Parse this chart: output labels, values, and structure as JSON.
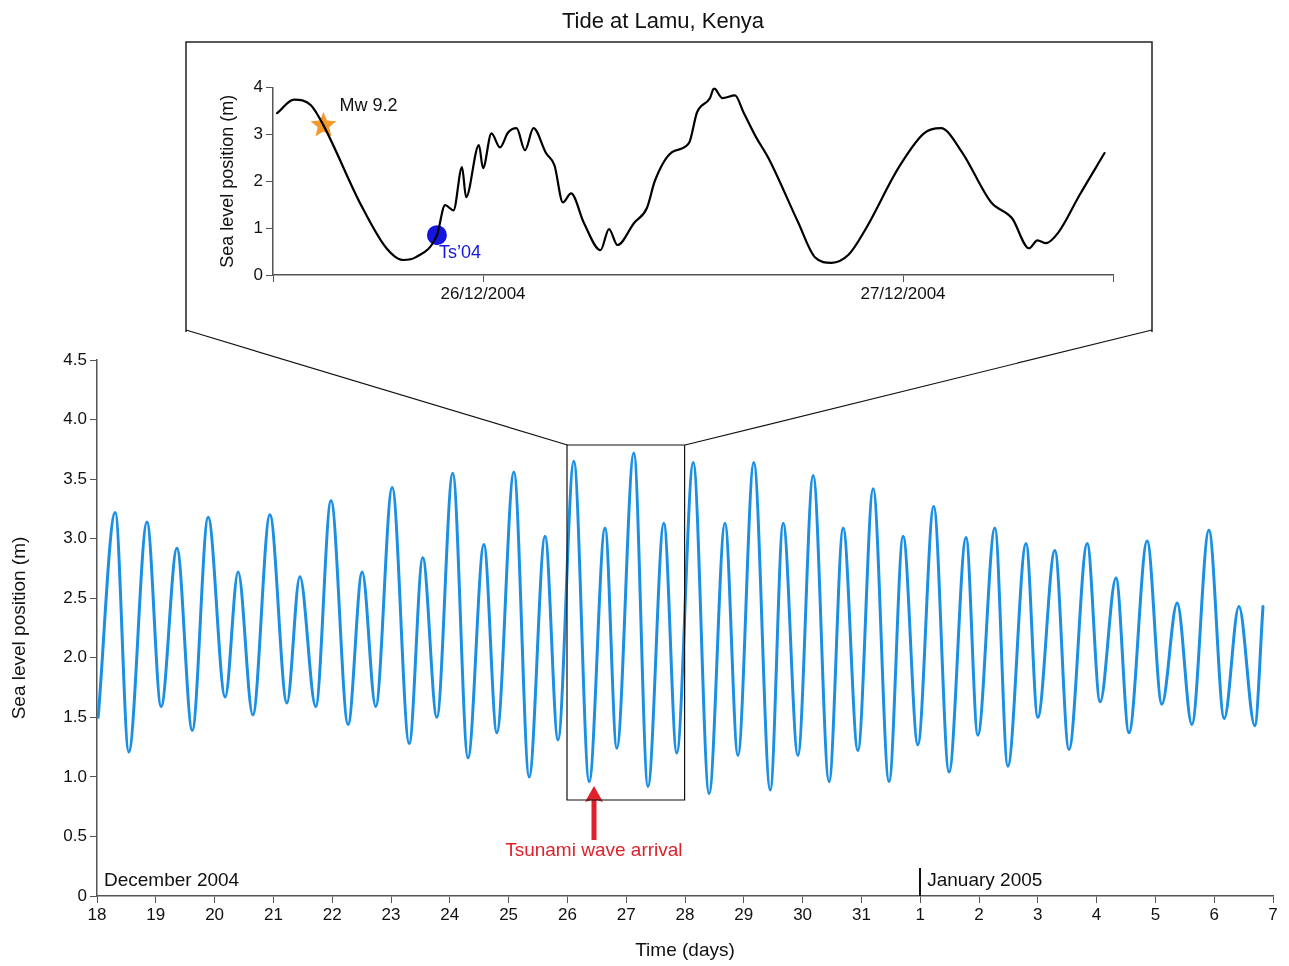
{
  "chart_data": [
    {
      "type": "line",
      "title": "Tide at Lamu, Kenya",
      "ylabel": "Sea level position (m)",
      "xlim": [
        "2004-12-26",
        "2004-12-28"
      ],
      "xticks": [
        {
          "value": "2004-12-26",
          "label": null
        },
        {
          "value": "2004-12-26T12:00",
          "label": "26/12/2004"
        },
        {
          "value": "2004-12-27T12:00",
          "label": "27/12/2004"
        },
        {
          "value": "2004-12-28",
          "label": null
        }
      ],
      "ylim": [
        0,
        4
      ],
      "yticks": [
        0,
        1,
        2,
        3,
        4
      ],
      "series": [
        {
          "color": "#000000",
          "x": [
            "2004-12-26T00:14",
            "2004-12-26T01:12",
            "2004-12-26T02:10",
            "2004-12-26T02:53",
            "2004-12-26T05:02",
            "2004-12-26T06:29",
            "2004-12-26T07:26",
            "2004-12-26T08:10",
            "2004-12-26T09:22",
            "2004-12-26T09:50",
            "2004-12-26T10:19",
            "2004-12-26T10:48",
            "2004-12-26T11:02",
            "2004-12-26T11:46",
            "2004-12-26T12:00",
            "2004-12-26T12:29",
            "2004-12-26T12:58",
            "2004-12-26T13:26",
            "2004-12-26T13:55",
            "2004-12-26T14:24",
            "2004-12-26T14:53",
            "2004-12-26T15:36",
            "2004-12-26T16:05",
            "2004-12-26T16:34",
            "2004-12-26T17:02",
            "2004-12-26T17:46",
            "2004-12-26T18:43",
            "2004-12-26T19:12",
            "2004-12-26T19:41",
            "2004-12-26T20:38",
            "2004-12-26T21:22",
            "2004-12-26T21:50",
            "2004-12-26T22:48",
            "2004-12-26T23:46",
            "2004-12-27T00:14",
            "2004-12-27T00:58",
            "2004-12-27T01:12",
            "2004-12-27T01:41",
            "2004-12-27T02:24",
            "2004-12-27T02:53",
            "2004-12-27T03:36",
            "2004-12-27T04:19",
            "2004-12-27T06:00",
            "2004-12-27T06:58",
            "2004-12-27T07:55",
            "2004-12-27T08:53",
            "2004-12-27T09:50",
            "2004-12-27T11:46",
            "2004-12-27T13:12",
            "2004-12-27T14:10",
            "2004-12-27T15:22",
            "2004-12-27T17:02",
            "2004-12-27T18:14",
            "2004-12-27T19:12",
            "2004-12-27T19:41",
            "2004-12-27T20:10",
            "2004-12-27T20:53",
            "2004-12-27T22:05",
            "2004-12-27T23:31"
          ],
          "values": [
            3.45,
            3.74,
            3.62,
            3.19,
            1.49,
            0.57,
            0.32,
            0.38,
            0.85,
            1.49,
            1.38,
            2.3,
            1.66,
            2.77,
            2.28,
            3.02,
            2.72,
            3.04,
            3.13,
            2.66,
            3.13,
            2.6,
            2.34,
            1.55,
            1.74,
            1.11,
            0.53,
            0.98,
            0.64,
            1.11,
            1.43,
            2.02,
            2.62,
            2.81,
            3.47,
            3.77,
            3.98,
            3.77,
            3.83,
            3.47,
            2.94,
            2.49,
            1.13,
            0.38,
            0.26,
            0.43,
            0.96,
            2.3,
            3.02,
            3.13,
            2.62,
            1.55,
            1.21,
            0.57,
            0.74,
            0.68,
            0.91,
            1.7,
            2.6
          ]
        },
        {
          "name": "Mw 9.2",
          "type": "scatter",
          "marker": "star",
          "color": "#f39a2f",
          "x": [
            "2004-12-26T02:53"
          ],
          "values": [
            3.19
          ]
        },
        {
          "name": "Ts’04",
          "type": "scatter",
          "marker": "circle",
          "color": "#1515e0",
          "x": [
            "2004-12-26T09:22"
          ],
          "values": [
            0.85
          ]
        }
      ]
    },
    {
      "type": "line",
      "xlabel": "Time (days)",
      "ylabel": "Sea level position (m)",
      "xlim": [
        "2004-12-18",
        "2005-01-07"
      ],
      "xticks": [
        {
          "value": "2004-12-18",
          "label": "18"
        },
        {
          "value": "2004-12-19",
          "label": "19"
        },
        {
          "value": "2004-12-20",
          "label": "20"
        },
        {
          "value": "2004-12-21",
          "label": "21"
        },
        {
          "value": "2004-12-22",
          "label": "22"
        },
        {
          "value": "2004-12-23",
          "label": "23"
        },
        {
          "value": "2004-12-24",
          "label": "24"
        },
        {
          "value": "2004-12-25",
          "label": "25"
        },
        {
          "value": "2004-12-26",
          "label": "26"
        },
        {
          "value": "2004-12-27",
          "label": "27"
        },
        {
          "value": "2004-12-28",
          "label": "28"
        },
        {
          "value": "2004-12-29",
          "label": "29"
        },
        {
          "value": "2004-12-30",
          "label": "30"
        },
        {
          "value": "2004-12-31",
          "label": "31"
        },
        {
          "value": "2005-01-01",
          "label": "1"
        },
        {
          "value": "2005-01-02",
          "label": "2"
        },
        {
          "value": "2005-01-03",
          "label": "3"
        },
        {
          "value": "2005-01-04",
          "label": "4"
        },
        {
          "value": "2005-01-05",
          "label": "5"
        },
        {
          "value": "2005-01-06",
          "label": "6"
        },
        {
          "value": "2005-01-07",
          "label": "7"
        }
      ],
      "ylim": [
        0,
        4.5
      ],
      "yticks": [
        0,
        0.5,
        {
          "value": 1,
          "label": "1.0"
        },
        1.5,
        {
          "value": 2,
          "label": "2.0"
        },
        2.5,
        {
          "value": 3,
          "label": "3.0"
        },
        3.5,
        {
          "value": 4,
          "label": "4.0"
        },
        4.5
      ],
      "series": [
        {
          "color": "#1a8fe3",
          "x": [
            "2004-12-18T00:29",
            "2004-12-18T07:26",
            "2004-12-18T12:58",
            "2004-12-18T20:24",
            "2004-12-19T02:10",
            "2004-12-19T08:38",
            "2004-12-19T14:53",
            "2004-12-19T21:22",
            "2004-12-20T04:19",
            "2004-12-20T09:36",
            "2004-12-20T15:36",
            "2004-12-20T22:34",
            "2004-12-21T05:31",
            "2004-12-21T10:48",
            "2004-12-21T17:17",
            "2004-12-21T23:31",
            "2004-12-22T06:29",
            "2004-12-22T12:14",
            "2004-12-22T17:46",
            "2004-12-23T00:29",
            "2004-12-23T07:26",
            "2004-12-23T12:58",
            "2004-12-23T18:43",
            "2004-12-24T01:12",
            "2004-12-24T07:26",
            "2004-12-24T13:55",
            "2004-12-24T19:12",
            "2004-12-25T02:10",
            "2004-12-25T08:24",
            "2004-12-25T14:53",
            "2004-12-25T20:10",
            "2004-12-26T02:38",
            "2004-12-26T08:53",
            "2004-12-26T15:22",
            "2004-12-26T20:10",
            "2004-12-27T03:07",
            "2004-12-27T08:53",
            "2004-12-27T15:22",
            "2004-12-27T20:38",
            "2004-12-28T03:22",
            "2004-12-28T09:50",
            "2004-12-28T16:19",
            "2004-12-28T21:36",
            "2004-12-29T04:05",
            "2004-12-29T10:48",
            "2004-12-29T16:05",
            "2004-12-29T22:05",
            "2004-12-30T04:19",
            "2004-12-30T10:48",
            "2004-12-30T16:34",
            "2004-12-30T22:34",
            "2004-12-31T04:48",
            "2004-12-31T11:17",
            "2004-12-31T17:02",
            "2004-12-31T23:02",
            "2005-01-01T05:31",
            "2005-01-01T11:46",
            "2005-01-01T18:43",
            "2005-01-01T23:31",
            "2005-01-02T06:29",
            "2005-01-02T11:46",
            "2005-01-02T19:12",
            "2005-01-03T00:00",
            "2005-01-03T06:58",
            "2005-01-03T12:43",
            "2005-01-03T20:10",
            "2005-01-04T01:26",
            "2005-01-04T07:55",
            "2005-01-04T13:12",
            "2005-01-04T20:38",
            "2005-01-05T02:38",
            "2005-01-05T08:53",
            "2005-01-05T14:53",
            "2005-01-05T21:50",
            "2005-01-06T04:05",
            "2005-01-06T10:05",
            "2005-01-06T16:34",
            "2005-01-06T19:55"
          ],
          "values": [
            1.5,
            3.22,
            1.21,
            3.14,
            1.59,
            2.92,
            1.39,
            3.18,
            1.67,
            2.72,
            1.52,
            3.2,
            1.62,
            2.68,
            1.59,
            3.32,
            1.44,
            2.72,
            1.59,
            3.43,
            1.28,
            2.84,
            1.5,
            3.55,
            1.16,
            2.95,
            1.37,
            3.56,
            1,
            3.02,
            1.31,
            3.65,
            0.96,
            3.09,
            1.24,
            3.72,
            0.92,
            3.13,
            1.2,
            3.64,
            0.86,
            3.13,
            1.18,
            3.64,
            0.89,
            3.13,
            1.18,
            3.53,
            0.96,
            3.09,
            1.22,
            3.42,
            0.96,
            3.02,
            1.27,
            3.27,
            1.04,
            3.01,
            1.35,
            3.09,
            1.09,
            2.96,
            1.5,
            2.9,
            1.23,
            2.96,
            1.63,
            2.67,
            1.37,
            2.98,
            1.61,
            2.46,
            1.44,
            3.07,
            1.49,
            2.43,
            1.43,
            2.43
          ]
        }
      ],
      "annotations": [
        "December 2004",
        "January 2005",
        {
          "text": "Tsunami wave arrival",
          "x": "2004-12-26T10:48",
          "y": 0.95
        }
      ]
    }
  ]
}
